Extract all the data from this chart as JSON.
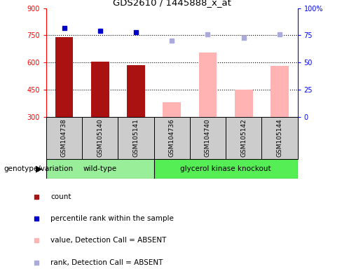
{
  "title": "GDS2610 / 1445888_x_at",
  "samples": [
    "GSM104738",
    "GSM105140",
    "GSM105141",
    "GSM104736",
    "GSM104740",
    "GSM105142",
    "GSM105144"
  ],
  "bar_values": [
    740,
    605,
    585,
    380,
    655,
    450,
    580
  ],
  "bar_present": [
    true,
    true,
    true,
    false,
    false,
    false,
    false
  ],
  "rank_values": [
    82,
    79,
    78,
    70,
    76,
    73,
    76
  ],
  "rank_present": [
    true,
    true,
    true,
    false,
    false,
    false,
    false
  ],
  "ylim_left": [
    300,
    900
  ],
  "ylim_right": [
    0,
    100
  ],
  "yticks_left": [
    300,
    450,
    600,
    750,
    900
  ],
  "yticks_right": [
    0,
    25,
    50,
    75,
    100
  ],
  "ytick_labels_left": [
    "300",
    "450",
    "600",
    "750",
    "900"
  ],
  "ytick_labels_right": [
    "0",
    "25",
    "50",
    "75",
    "100%"
  ],
  "color_count": "#aa1111",
  "color_absent_value": "#ffb3b3",
  "color_rank_present": "#0000cc",
  "color_rank_absent": "#aaaadd",
  "grid_lines": [
    450,
    600,
    750
  ],
  "legend_items": [
    {
      "label": "count",
      "color": "#aa1111"
    },
    {
      "label": "percentile rank within the sample",
      "color": "#0000cc"
    },
    {
      "label": "value, Detection Call = ABSENT",
      "color": "#ffb3b3"
    },
    {
      "label": "rank, Detection Call = ABSENT",
      "color": "#aaaadd"
    }
  ],
  "wt_color": "#99ee99",
  "gk_color": "#55ee55",
  "label_bg": "#cccccc"
}
